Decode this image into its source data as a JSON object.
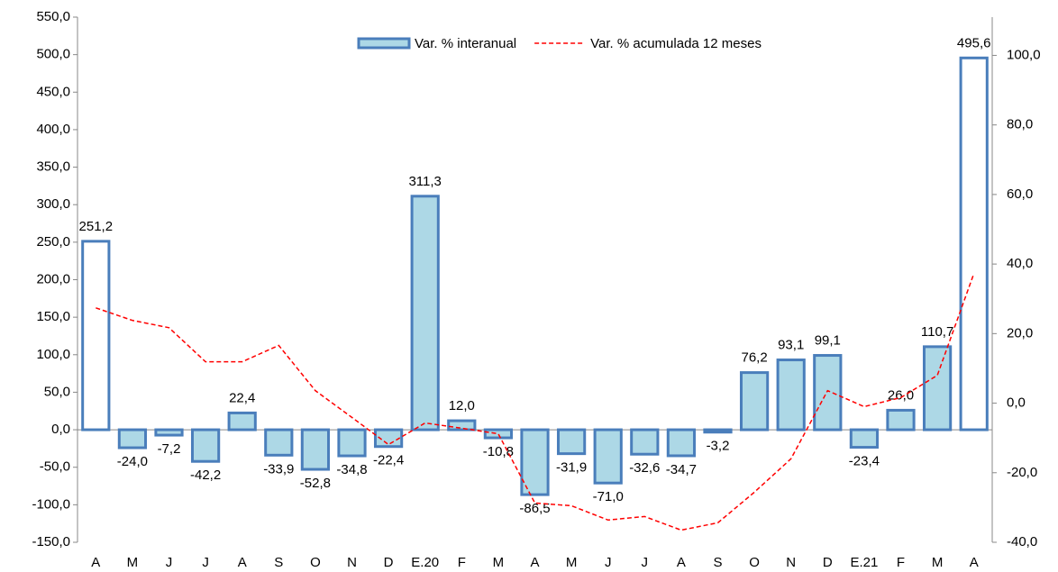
{
  "chart_data": {
    "type": "bar",
    "categories": [
      "A",
      "M",
      "J",
      "J",
      "A",
      "S",
      "O",
      "N",
      "D",
      "E.20",
      "F",
      "M",
      "A",
      "M",
      "J",
      "J",
      "A",
      "S",
      "O",
      "N",
      "D",
      "E.21",
      "F",
      "M",
      "A"
    ],
    "series": [
      {
        "name": "Var. % interanual",
        "type": "bar",
        "color": "#add8e6",
        "border": "#4a7ebb",
        "colors": [
          "#ffffff",
          "#add8e6",
          "#add8e6",
          "#add8e6",
          "#add8e6",
          "#add8e6",
          "#add8e6",
          "#add8e6",
          "#add8e6",
          "#add8e6",
          "#add8e6",
          "#add8e6",
          "#add8e6",
          "#add8e6",
          "#add8e6",
          "#add8e6",
          "#add8e6",
          "#add8e6",
          "#add8e6",
          "#add8e6",
          "#add8e6",
          "#add8e6",
          "#add8e6",
          "#add8e6",
          "#ffffff"
        ],
        "values": [
          251.2,
          -24.0,
          -7.2,
          -42.2,
          22.4,
          -33.9,
          -52.8,
          -34.8,
          -22.4,
          311.3,
          12.0,
          -10.8,
          -86.5,
          -31.9,
          -71.0,
          -32.6,
          -34.7,
          -3.2,
          76.2,
          93.1,
          99.1,
          -23.4,
          26.0,
          110.7,
          495.6
        ],
        "value_labels": [
          "251,2",
          "-24,0",
          "-7,2",
          "-42,2",
          "22,4",
          "-33,9",
          "-52,8",
          "-34,8",
          "-22,4",
          "311,3",
          "12,0",
          "-10,8",
          "-86,5",
          "-31,9",
          "-71,0",
          "-32,6",
          "-34,7",
          "-3,2",
          "76,2",
          "93,1",
          "99,1",
          "-23,4",
          "26,0",
          "110,7",
          "495,6"
        ]
      },
      {
        "name": "Var. % acumulada 12 meses",
        "type": "line",
        "axis": "y2",
        "color": "#ff0000",
        "dashed": true,
        "values": [
          27.4,
          23.8,
          21.7,
          11.9,
          11.9,
          16.6,
          3.6,
          -4.1,
          -11.9,
          -5.7,
          -7.2,
          -8.8,
          -28.7,
          -29.5,
          -33.6,
          -32.6,
          -36.5,
          -34.4,
          -25.6,
          -16.0,
          3.6,
          -1.0,
          1.6,
          8.0,
          37.3
        ]
      }
    ],
    "ylim": [
      -150,
      550
    ],
    "yticks": [
      {
        "value": -150,
        "label": "-150,0"
      },
      {
        "value": -100,
        "label": "-100,0"
      },
      {
        "value": -50,
        "label": "-50,0"
      },
      {
        "value": 0,
        "label": "0,0"
      },
      {
        "value": 50,
        "label": "50,0"
      },
      {
        "value": 100,
        "label": "100,0"
      },
      {
        "value": 150,
        "label": "150,0"
      },
      {
        "value": 200,
        "label": "200,0"
      },
      {
        "value": 250,
        "label": "250,0"
      },
      {
        "value": 300,
        "label": "300,0"
      },
      {
        "value": 350,
        "label": "350,0"
      },
      {
        "value": 400,
        "label": "400,0"
      },
      {
        "value": 450,
        "label": "450,0"
      },
      {
        "value": 500,
        "label": "500,0"
      },
      {
        "value": 550,
        "label": "550,0"
      }
    ],
    "y2lim": [
      -40,
      111
    ],
    "y2ticks": [
      {
        "value": -40,
        "label": "-40,0"
      },
      {
        "value": -20,
        "label": "-20,0"
      },
      {
        "value": 0,
        "label": "0,0"
      },
      {
        "value": 20,
        "label": "20,0"
      },
      {
        "value": 40,
        "label": "40,0"
      },
      {
        "value": 60,
        "label": "60,0"
      },
      {
        "value": 80,
        "label": "80,0"
      },
      {
        "value": 100,
        "label": "100,0"
      }
    ],
    "legend": "top"
  }
}
